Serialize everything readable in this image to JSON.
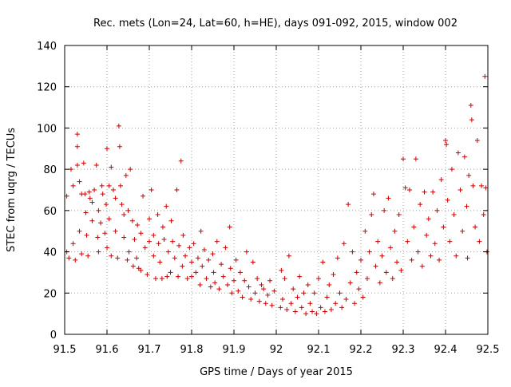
{
  "chart_data": {
    "type": "scatter",
    "title": "Rec. mets (Lon=24, Lat=60, h=HE), days 091-092, 2015, window 002",
    "xlabel": "GPS time / Days of year 2015",
    "ylabel": "STEC from uqrg / TECUs",
    "xlim": [
      91.5,
      92.5
    ],
    "ylim": [
      0,
      140
    ],
    "x_ticks": [
      91.5,
      91.6,
      91.7,
      91.8,
      91.9,
      92.0,
      92.1,
      92.2,
      92.3,
      92.4,
      92.5
    ],
    "x_tick_labels": [
      "91.5",
      "91.6",
      "91.7",
      "91.8",
      "91.9",
      "92",
      "92.1",
      "92.2",
      "92.3",
      "92.4",
      "92.5"
    ],
    "y_ticks": [
      0,
      20,
      40,
      60,
      80,
      100,
      120,
      140
    ],
    "y_tick_labels": [
      "0",
      "20",
      "40",
      "60",
      "80",
      "100",
      "120",
      "140"
    ],
    "grid": true,
    "marker": "+",
    "color": "#cc0000",
    "series": [
      {
        "points": [
          [
            91.505,
            67
          ],
          [
            91.505,
            40
          ],
          [
            91.51,
            37
          ],
          [
            91.515,
            80
          ],
          [
            91.52,
            72
          ],
          [
            91.52,
            44
          ],
          [
            91.525,
            36
          ],
          [
            91.53,
            97
          ],
          [
            91.53,
            91
          ],
          [
            91.53,
            82
          ],
          [
            91.535,
            74
          ],
          [
            91.535,
            50
          ],
          [
            91.54,
            68
          ],
          [
            91.54,
            39
          ],
          [
            91.545,
            83
          ],
          [
            91.548,
            68
          ],
          [
            91.55,
            59
          ],
          [
            91.552,
            48
          ],
          [
            91.555,
            38
          ],
          [
            91.558,
            69
          ],
          [
            91.56,
            66
          ],
          [
            91.565,
            64
          ],
          [
            91.565,
            55
          ],
          [
            91.57,
            70
          ],
          [
            91.575,
            82
          ],
          [
            91.578,
            47
          ],
          [
            91.58,
            40
          ],
          [
            91.58,
            60
          ],
          [
            91.585,
            54
          ],
          [
            91.588,
            72
          ],
          [
            91.59,
            68
          ],
          [
            91.595,
            49
          ],
          [
            91.598,
            63
          ],
          [
            91.6,
            42
          ],
          [
            91.6,
            90
          ],
          [
            91.605,
            72
          ],
          [
            91.605,
            56
          ],
          [
            91.61,
            38
          ],
          [
            91.61,
            81
          ],
          [
            91.615,
            70
          ],
          [
            91.62,
            66
          ],
          [
            91.62,
            50
          ],
          [
            91.625,
            37
          ],
          [
            91.628,
            101
          ],
          [
            91.63,
            91
          ],
          [
            91.632,
            72
          ],
          [
            91.635,
            63
          ],
          [
            91.64,
            58
          ],
          [
            91.64,
            47
          ],
          [
            91.645,
            77
          ],
          [
            91.648,
            36
          ],
          [
            91.65,
            60
          ],
          [
            91.652,
            40
          ],
          [
            91.655,
            80
          ],
          [
            91.66,
            55
          ],
          [
            91.662,
            33
          ],
          [
            91.665,
            46
          ],
          [
            91.67,
            37
          ],
          [
            91.672,
            53
          ],
          [
            91.675,
            32
          ],
          [
            91.68,
            49
          ],
          [
            91.68,
            31
          ],
          [
            91.685,
            67
          ],
          [
            91.69,
            42
          ],
          [
            91.695,
            29
          ],
          [
            91.7,
            45
          ],
          [
            91.7,
            56
          ],
          [
            91.705,
            70
          ],
          [
            91.71,
            48
          ],
          [
            91.71,
            38
          ],
          [
            91.715,
            27
          ],
          [
            91.72,
            58
          ],
          [
            91.722,
            44
          ],
          [
            91.725,
            35
          ],
          [
            91.73,
            27
          ],
          [
            91.732,
            52
          ],
          [
            91.735,
            46
          ],
          [
            91.74,
            62
          ],
          [
            91.742,
            28
          ],
          [
            91.745,
            40
          ],
          [
            91.75,
            30
          ],
          [
            91.752,
            55
          ],
          [
            91.755,
            45
          ],
          [
            91.76,
            37
          ],
          [
            91.765,
            70
          ],
          [
            91.768,
            28
          ],
          [
            91.77,
            43
          ],
          [
            91.775,
            84
          ],
          [
            91.778,
            33
          ],
          [
            91.78,
            48
          ],
          [
            91.785,
            38
          ],
          [
            91.79,
            27
          ],
          [
            91.795,
            42
          ],
          [
            91.8,
            35
          ],
          [
            91.8,
            28
          ],
          [
            91.805,
            44
          ],
          [
            91.81,
            30
          ],
          [
            91.815,
            37
          ],
          [
            91.82,
            24
          ],
          [
            91.822,
            50
          ],
          [
            91.825,
            33
          ],
          [
            91.83,
            41
          ],
          [
            91.835,
            27
          ],
          [
            91.84,
            36
          ],
          [
            91.845,
            23
          ],
          [
            91.85,
            39
          ],
          [
            91.852,
            30
          ],
          [
            91.855,
            25
          ],
          [
            91.86,
            45
          ],
          [
            91.865,
            22
          ],
          [
            91.87,
            34
          ],
          [
            91.875,
            28
          ],
          [
            91.88,
            42
          ],
          [
            91.885,
            24
          ],
          [
            91.89,
            52
          ],
          [
            91.892,
            32
          ],
          [
            91.895,
            20
          ],
          [
            91.9,
            26
          ],
          [
            91.905,
            36
          ],
          [
            91.91,
            21
          ],
          [
            91.915,
            30
          ],
          [
            91.92,
            18
          ],
          [
            91.925,
            26
          ],
          [
            91.93,
            40
          ],
          [
            91.935,
            23
          ],
          [
            91.94,
            17
          ],
          [
            91.945,
            35
          ],
          [
            91.95,
            20
          ],
          [
            91.955,
            27
          ],
          [
            91.96,
            16
          ],
          [
            91.965,
            24
          ],
          [
            91.97,
            22
          ],
          [
            91.975,
            15
          ],
          [
            91.98,
            19
          ],
          [
            91.985,
            26
          ],
          [
            91.99,
            14
          ],
          [
            91.995,
            21
          ],
          [
            92.01,
            13
          ],
          [
            92.012,
            31
          ],
          [
            92.015,
            17
          ],
          [
            92.02,
            27
          ],
          [
            92.025,
            12
          ],
          [
            92.03,
            38
          ],
          [
            92.035,
            15
          ],
          [
            92.04,
            22
          ],
          [
            92.045,
            11
          ],
          [
            92.05,
            18
          ],
          [
            92.055,
            28
          ],
          [
            92.06,
            13
          ],
          [
            92.065,
            20
          ],
          [
            92.07,
            10
          ],
          [
            92.075,
            24
          ],
          [
            92.08,
            15
          ],
          [
            92.085,
            11
          ],
          [
            92.09,
            20
          ],
          [
            92.095,
            10
          ],
          [
            92.1,
            27
          ],
          [
            92.105,
            13
          ],
          [
            92.11,
            35
          ],
          [
            92.115,
            11
          ],
          [
            92.12,
            18
          ],
          [
            92.125,
            24
          ],
          [
            92.13,
            12
          ],
          [
            92.135,
            29
          ],
          [
            92.14,
            15
          ],
          [
            92.145,
            37
          ],
          [
            92.15,
            20
          ],
          [
            92.155,
            13
          ],
          [
            92.16,
            44
          ],
          [
            92.165,
            17
          ],
          [
            92.17,
            63
          ],
          [
            92.175,
            25
          ],
          [
            92.18,
            40
          ],
          [
            92.185,
            15
          ],
          [
            92.19,
            30
          ],
          [
            92.195,
            22
          ],
          [
            92.2,
            36
          ],
          [
            92.205,
            18
          ],
          [
            92.21,
            50
          ],
          [
            92.215,
            27
          ],
          [
            92.22,
            40
          ],
          [
            92.225,
            58
          ],
          [
            92.23,
            68
          ],
          [
            92.235,
            33
          ],
          [
            92.24,
            45
          ],
          [
            92.245,
            25
          ],
          [
            92.25,
            38
          ],
          [
            92.255,
            60
          ],
          [
            92.26,
            30
          ],
          [
            92.265,
            66
          ],
          [
            92.27,
            42
          ],
          [
            92.275,
            27
          ],
          [
            92.28,
            50
          ],
          [
            92.285,
            35
          ],
          [
            92.29,
            58
          ],
          [
            92.295,
            31
          ],
          [
            92.3,
            85
          ],
          [
            92.305,
            71
          ],
          [
            92.31,
            45
          ],
          [
            92.315,
            70
          ],
          [
            92.32,
            36
          ],
          [
            92.325,
            52
          ],
          [
            92.33,
            85
          ],
          [
            92.335,
            40
          ],
          [
            92.34,
            63
          ],
          [
            92.345,
            33
          ],
          [
            92.35,
            69
          ],
          [
            92.355,
            48
          ],
          [
            92.36,
            56
          ],
          [
            92.365,
            38
          ],
          [
            92.37,
            69
          ],
          [
            92.375,
            44
          ],
          [
            92.38,
            60
          ],
          [
            92.385,
            36
          ],
          [
            92.39,
            75
          ],
          [
            92.395,
            52
          ],
          [
            92.4,
            94
          ],
          [
            92.402,
            92
          ],
          [
            92.405,
            65
          ],
          [
            92.41,
            45
          ],
          [
            92.415,
            80
          ],
          [
            92.42,
            58
          ],
          [
            92.425,
            38
          ],
          [
            92.43,
            88
          ],
          [
            92.435,
            70
          ],
          [
            92.44,
            50
          ],
          [
            92.445,
            86
          ],
          [
            92.45,
            62
          ],
          [
            92.452,
            37
          ],
          [
            92.455,
            77
          ],
          [
            92.46,
            111
          ],
          [
            92.462,
            104
          ],
          [
            92.465,
            72
          ],
          [
            92.47,
            52
          ],
          [
            92.475,
            94
          ],
          [
            92.48,
            45
          ],
          [
            92.485,
            72
          ],
          [
            92.49,
            58
          ],
          [
            92.493,
            125
          ],
          [
            92.495,
            71
          ],
          [
            92.498,
            40
          ]
        ]
      }
    ]
  }
}
